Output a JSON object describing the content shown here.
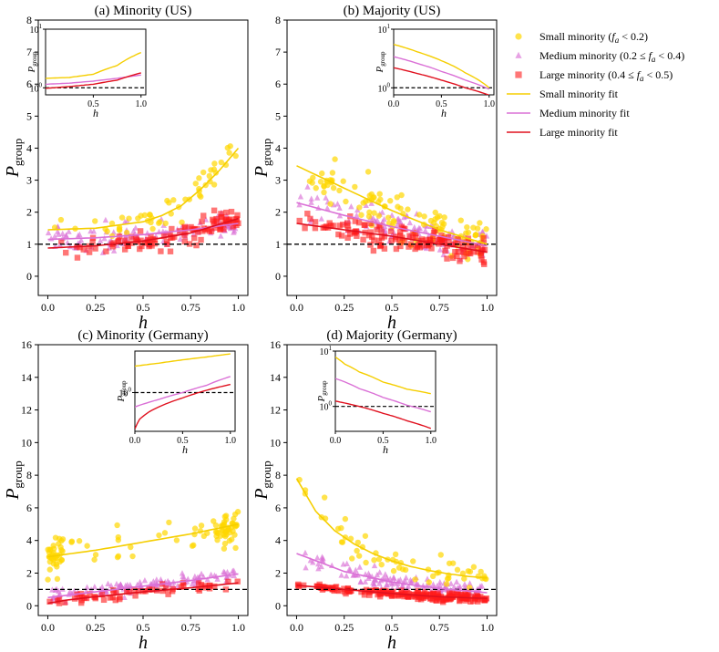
{
  "colors": {
    "small": "#FFD700",
    "medium": "#DA70D6",
    "large": "#FF1A1A",
    "small_line": "#F5CE00",
    "medium_line": "#DA70D6",
    "large_line": "#E0101E"
  },
  "legend": {
    "items": [
      {
        "key": "small",
        "marker": "circle",
        "label_parts": [
          "Small minority (",
          "f",
          "a",
          " < 0.2)"
        ]
      },
      {
        "key": "medium",
        "marker": "triangle",
        "label_parts": [
          "Medium minority (0.2 ≤ ",
          "f",
          "a",
          " < 0.4)"
        ]
      },
      {
        "key": "large",
        "marker": "square",
        "label_parts": [
          "Large minority (0.4 ≤ ",
          "f",
          "a",
          " < 0.5)"
        ]
      },
      {
        "key": "small",
        "marker": "line",
        "label_parts": [
          "Small minority fit"
        ]
      },
      {
        "key": "medium",
        "marker": "line",
        "label_parts": [
          "Medium minority fit"
        ]
      },
      {
        "key": "large",
        "marker": "line",
        "label_parts": [
          "Large minority fit"
        ]
      }
    ]
  },
  "chart_data": [
    {
      "id": "a",
      "type": "scatter",
      "title": "(a) Minority (US)",
      "xlabel": "h",
      "ylabel": {
        "main": "P",
        "sub": "group"
      },
      "xlim": [
        -0.05,
        1.05
      ],
      "ylim": [
        -0.6,
        8
      ],
      "xticks": [
        0,
        0.25,
        0.5,
        0.75,
        1.0
      ],
      "xtick_labels": [
        "0.0",
        "0.25",
        "0.5",
        "0.75",
        "1.0"
      ],
      "yticks": [
        0,
        1,
        2,
        3,
        4,
        5,
        6,
        7,
        8
      ],
      "ytick_labels": [
        "0",
        "1",
        "2",
        "3",
        "4",
        "5",
        "6",
        "7",
        "8"
      ],
      "baseline": 1,
      "fits": {
        "small": {
          "x": [
            0,
            0.25,
            0.5,
            0.6,
            0.7,
            0.8,
            0.9,
            1.0
          ],
          "y": [
            1.45,
            1.5,
            1.7,
            1.9,
            2.2,
            2.7,
            3.3,
            4.0
          ]
        },
        "medium": {
          "x": [
            0,
            0.25,
            0.5,
            0.75,
            1.0
          ],
          "y": [
            1.15,
            1.2,
            1.3,
            1.45,
            1.65
          ]
        },
        "large": {
          "x": [
            0,
            0.25,
            0.5,
            0.75,
            1.0
          ],
          "y": [
            0.88,
            0.95,
            1.1,
            1.35,
            1.8
          ]
        }
      },
      "scatter_spec": {
        "small": {
          "n": 55,
          "mode": "minority",
          "base": 1.45,
          "grow": 2.4,
          "spread": 0.9
        },
        "medium": {
          "n": 110,
          "mode": "flat",
          "base": 1.2,
          "grow": 0.4,
          "spread": 0.8
        },
        "large": {
          "n": 110,
          "mode": "minority",
          "base": 0.9,
          "grow": 0.9,
          "spread": 0.6
        }
      },
      "inset": {
        "xticks": [
          0.5,
          1.0
        ],
        "xtick_labels": [
          "0.5",
          "1.0"
        ],
        "xlim": [
          0,
          1.05
        ],
        "ylog_lim": [
          -0.12,
          1.0
        ],
        "ytick_labels": {
          "top": "10",
          "top_exp": "1",
          "bottom": "10",
          "bottom_exp": "0"
        },
        "fits": {
          "small": {
            "x": [
              0,
              0.25,
              0.5,
              0.75,
              1.0
            ],
            "y": [
              1.45,
              1.5,
              1.7,
              2.4,
              4.0
            ]
          },
          "medium": {
            "x": [
              0,
              0.25,
              0.5,
              0.75,
              1.0
            ],
            "y": [
              1.15,
              1.2,
              1.3,
              1.45,
              1.65
            ]
          },
          "large": {
            "x": [
              0,
              0.25,
              0.5,
              0.75,
              1.0
            ],
            "y": [
              0.98,
              1.05,
              1.15,
              1.35,
              1.8
            ]
          }
        }
      }
    },
    {
      "id": "b",
      "type": "scatter",
      "title": "(b) Majority (US)",
      "xlabel": "h",
      "ylabel": {
        "main": "P",
        "sub": "group"
      },
      "xlim": [
        -0.05,
        1.05
      ],
      "ylim": [
        -0.6,
        8
      ],
      "xticks": [
        0,
        0.25,
        0.5,
        0.75,
        1.0
      ],
      "xtick_labels": [
        "0.0",
        "0.25",
        "0.5",
        "0.75",
        "1.0"
      ],
      "yticks": [
        0,
        1,
        2,
        3,
        4,
        5,
        6,
        7,
        8
      ],
      "ytick_labels": [
        "0",
        "1",
        "2",
        "3",
        "4",
        "5",
        "6",
        "7",
        "8"
      ],
      "baseline": 1,
      "fits": {
        "small": {
          "x": [
            0,
            0.25,
            0.5,
            0.75,
            1.0
          ],
          "y": [
            3.45,
            2.75,
            2.05,
            1.45,
            1.0
          ]
        },
        "medium": {
          "x": [
            0,
            0.25,
            0.5,
            0.75,
            1.0
          ],
          "y": [
            2.3,
            1.9,
            1.55,
            1.25,
            0.95
          ]
        },
        "large": {
          "x": [
            0,
            0.25,
            0.5,
            0.75,
            1.0
          ],
          "y": [
            1.65,
            1.45,
            1.25,
            1.0,
            0.75
          ]
        }
      },
      "scatter_spec": {
        "small": {
          "n": 110,
          "mode": "majority",
          "base": 3.4,
          "grow": -2.5,
          "spread": 1.3
        },
        "medium": {
          "n": 130,
          "mode": "majority",
          "base": 2.3,
          "grow": -1.4,
          "spread": 0.9
        },
        "large": {
          "n": 140,
          "mode": "majority",
          "base": 1.65,
          "grow": -0.9,
          "spread": 0.7
        }
      },
      "inset": {
        "xticks": [
          0,
          0.5,
          1.0
        ],
        "xtick_labels": [
          "0.0",
          "0.5",
          "1.0"
        ],
        "xlim": [
          0,
          1.05
        ],
        "ylog_lim": [
          -0.12,
          1.0
        ],
        "ytick_labels": {
          "top": "10",
          "top_exp": "1",
          "bottom": "10",
          "bottom_exp": "0"
        },
        "fits": {
          "small": {
            "x": [
              0,
              0.25,
              0.5,
              0.75,
              1.0
            ],
            "y": [
              5.5,
              4.1,
              2.9,
              1.8,
              1.0
            ]
          },
          "medium": {
            "x": [
              0,
              0.25,
              0.5,
              0.75,
              1.0
            ],
            "y": [
              3.4,
              2.6,
              1.9,
              1.35,
              0.95
            ]
          },
          "large": {
            "x": [
              0,
              0.25,
              0.5,
              0.75,
              1.0
            ],
            "y": [
              2.2,
              1.75,
              1.35,
              1.0,
              0.75
            ]
          }
        }
      }
    },
    {
      "id": "c",
      "type": "scatter",
      "title": "(c) Minority (Germany)",
      "xlabel": "h",
      "ylabel": {
        "main": "P",
        "sub": "group"
      },
      "xlim": [
        -0.05,
        1.05
      ],
      "ylim": [
        -0.6,
        16
      ],
      "xticks": [
        0,
        0.25,
        0.5,
        0.75,
        1.0
      ],
      "xtick_labels": [
        "0.0",
        "0.25",
        "0.5",
        "0.75",
        "1.0"
      ],
      "yticks": [
        0,
        2,
        4,
        6,
        8,
        10,
        12,
        14,
        16
      ],
      "ytick_labels": [
        "0",
        "2",
        "4",
        "6",
        "8",
        "10",
        "12",
        "14",
        "16"
      ],
      "baseline": 1,
      "fits": {
        "small": {
          "x": [
            0,
            0.25,
            0.5,
            0.75,
            1.0
          ],
          "y": [
            3.0,
            3.4,
            3.9,
            4.4,
            5.0
          ]
        },
        "medium": {
          "x": [
            0,
            0.25,
            0.5,
            0.75,
            1.0
          ],
          "y": [
            0.5,
            0.85,
            1.2,
            1.55,
            1.95
          ]
        },
        "large": {
          "x": [
            0,
            0.1,
            0.25,
            0.5,
            0.75,
            1.0
          ],
          "y": [
            0.15,
            0.35,
            0.55,
            0.85,
            1.1,
            1.4
          ]
        }
      },
      "scatter_spec": {
        "small": {
          "n": 110,
          "mode": "edges",
          "base": 3.5,
          "grow": 1.5,
          "spread": 2.2
        },
        "medium": {
          "n": 120,
          "mode": "flat",
          "base": 0.9,
          "grow": 1.0,
          "spread": 0.7
        },
        "large": {
          "n": 60,
          "mode": "flat",
          "base": 0.5,
          "grow": 1.0,
          "spread": 0.5
        }
      },
      "inset": {
        "xticks": [
          0,
          0.5,
          1.0
        ],
        "xtick_labels": [
          "0.0",
          "0.5",
          "1.0"
        ],
        "xlim": [
          0,
          1.05
        ],
        "ylog_lim": [
          -0.7,
          0.75
        ],
        "ytick_labels": {
          "top": "10",
          "top_exp": "1",
          "bottom": "10",
          "bottom_exp": "0"
        },
        "fits": {
          "small": {
            "x": [
              0,
              0.25,
              0.5,
              0.75,
              1.0
            ],
            "y": [
              3.0,
              3.4,
              3.9,
              4.4,
              5.0
            ]
          },
          "medium": {
            "x": [
              0,
              0.25,
              0.5,
              0.75,
              1.0
            ],
            "y": [
              0.55,
              0.75,
              1.0,
              1.35,
              1.95
            ]
          },
          "large": {
            "x": [
              0,
              0.05,
              0.15,
              0.3,
              0.5,
              0.75,
              1.0
            ],
            "y": [
              0.22,
              0.33,
              0.45,
              0.6,
              0.8,
              1.1,
              1.4
            ]
          }
        }
      }
    },
    {
      "id": "d",
      "type": "scatter",
      "title": "(d) Majority (Germany)",
      "xlabel": "h",
      "ylabel": {
        "main": "P",
        "sub": "group"
      },
      "xlim": [
        -0.05,
        1.05
      ],
      "ylim": [
        -0.6,
        16
      ],
      "xticks": [
        0,
        0.25,
        0.5,
        0.75,
        1.0
      ],
      "xtick_labels": [
        "0.0",
        "0.25",
        "0.5",
        "0.75",
        "1.0"
      ],
      "yticks": [
        0,
        2,
        4,
        6,
        8,
        10,
        12,
        14,
        16
      ],
      "ytick_labels": [
        "0",
        "2",
        "4",
        "6",
        "8",
        "10",
        "12",
        "14",
        "16"
      ],
      "baseline": 1,
      "fits": {
        "small": {
          "x": [
            0,
            0.1,
            0.2,
            0.3,
            0.4,
            0.5,
            0.6,
            0.7,
            0.8,
            0.9,
            1.0
          ],
          "y": [
            7.8,
            5.8,
            4.6,
            3.8,
            3.2,
            2.75,
            2.4,
            2.15,
            1.95,
            1.8,
            1.7
          ]
        },
        "medium": {
          "x": [
            0,
            0.25,
            0.5,
            0.75,
            1.0
          ],
          "y": [
            3.2,
            2.1,
            1.45,
            1.05,
            0.8
          ]
        },
        "large": {
          "x": [
            0,
            0.25,
            0.5,
            0.75,
            1.0
          ],
          "y": [
            1.25,
            1.0,
            0.75,
            0.55,
            0.45
          ]
        }
      },
      "scatter_spec": {
        "small": {
          "n": 60,
          "mode": "majority",
          "base": 3.5,
          "grow": -1.8,
          "spread": 1.6
        },
        "medium": {
          "n": 130,
          "mode": "majority",
          "base": 2.8,
          "grow": -2.0,
          "spread": 0.9
        },
        "large": {
          "n": 200,
          "mode": "majority",
          "base": 1.1,
          "grow": -0.6,
          "spread": 0.45
        }
      },
      "inset": {
        "xticks": [
          0,
          0.5,
          1.0
        ],
        "xtick_labels": [
          "0.0",
          "0.5",
          "1.0"
        ],
        "xlim": [
          0,
          1.05
        ],
        "ylog_lim": [
          -0.45,
          1.0
        ],
        "ytick_labels": {
          "top": "10",
          "top_exp": "1",
          "bottom": "10",
          "bottom_exp": "0"
        },
        "fits": {
          "small": {
            "x": [
              0,
              0.1,
              0.25,
              0.5,
              0.75,
              1.0
            ],
            "y": [
              7.8,
              5.8,
              4.2,
              2.75,
              2.05,
              1.7
            ]
          },
          "medium": {
            "x": [
              0,
              0.25,
              0.5,
              0.75,
              1.0
            ],
            "y": [
              3.2,
              2.1,
              1.45,
              1.05,
              0.8
            ]
          },
          "large": {
            "x": [
              0,
              0.25,
              0.5,
              0.75,
              1.0
            ],
            "y": [
              1.25,
              1.0,
              0.75,
              0.55,
              0.4
            ]
          }
        }
      }
    }
  ]
}
